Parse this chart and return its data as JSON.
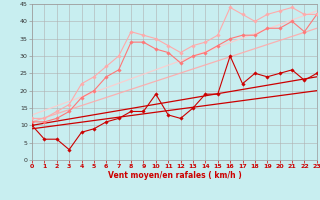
{
  "xlabel": "Vent moyen/en rafales ( km/h )",
  "xlim": [
    0,
    23
  ],
  "ylim": [
    0,
    45
  ],
  "xticks": [
    0,
    1,
    2,
    3,
    4,
    5,
    6,
    7,
    8,
    9,
    10,
    11,
    12,
    13,
    14,
    15,
    16,
    17,
    18,
    19,
    20,
    21,
    22,
    23
  ],
  "yticks": [
    0,
    5,
    10,
    15,
    20,
    25,
    30,
    35,
    40,
    45
  ],
  "background_color": "#c8eef0",
  "grid_color": "#b0b0b0",
  "lines": [
    {
      "x": [
        0,
        1,
        2,
        3,
        4,
        5,
        6,
        7,
        8,
        9,
        10,
        11,
        12,
        13,
        14,
        15,
        16,
        17,
        18,
        19,
        20,
        21,
        22,
        23
      ],
      "y": [
        10,
        6,
        6,
        3,
        8,
        9,
        11,
        12,
        14,
        14,
        19,
        13,
        12,
        15,
        19,
        19,
        30,
        22,
        25,
        24,
        25,
        26,
        23,
        25
      ],
      "color": "#cc0000",
      "lw": 0.8,
      "marker": "D",
      "ms": 1.8,
      "alpha": 1.0,
      "zorder": 5
    },
    {
      "x": [
        0,
        23
      ],
      "y": [
        9,
        20
      ],
      "color": "#cc0000",
      "lw": 0.9,
      "marker": null,
      "ms": 0,
      "alpha": 1.0,
      "zorder": 3
    },
    {
      "x": [
        0,
        23
      ],
      "y": [
        10,
        24
      ],
      "color": "#cc0000",
      "lw": 0.9,
      "marker": null,
      "ms": 0,
      "alpha": 1.0,
      "zorder": 3
    },
    {
      "x": [
        0,
        1,
        2,
        3,
        4,
        5,
        6,
        7,
        8,
        9,
        10,
        11,
        12,
        13,
        14,
        15,
        16,
        17,
        18,
        19,
        20,
        21,
        22,
        23
      ],
      "y": [
        11,
        11,
        12,
        14,
        18,
        20,
        24,
        26,
        34,
        34,
        32,
        31,
        28,
        30,
        31,
        33,
        35,
        36,
        36,
        38,
        38,
        40,
        37,
        42
      ],
      "color": "#ff7777",
      "lw": 0.8,
      "marker": "D",
      "ms": 1.8,
      "alpha": 1.0,
      "zorder": 4
    },
    {
      "x": [
        0,
        1,
        2,
        3,
        4,
        5,
        6,
        7,
        8,
        9,
        10,
        11,
        12,
        13,
        14,
        15,
        16,
        17,
        18,
        19,
        20,
        21,
        22,
        23
      ],
      "y": [
        12,
        12,
        14,
        16,
        22,
        24,
        27,
        30,
        37,
        36,
        35,
        33,
        31,
        33,
        34,
        36,
        44,
        42,
        40,
        42,
        43,
        44,
        42,
        42
      ],
      "color": "#ffaaaa",
      "lw": 0.8,
      "marker": "D",
      "ms": 1.8,
      "alpha": 1.0,
      "zorder": 4
    },
    {
      "x": [
        0,
        23
      ],
      "y": [
        11,
        38
      ],
      "color": "#ffaaaa",
      "lw": 0.9,
      "marker": null,
      "ms": 0,
      "alpha": 0.9,
      "zorder": 2
    },
    {
      "x": [
        0,
        23
      ],
      "y": [
        13,
        43
      ],
      "color": "#ffcccc",
      "lw": 0.9,
      "marker": null,
      "ms": 0,
      "alpha": 0.9,
      "zorder": 2
    }
  ]
}
